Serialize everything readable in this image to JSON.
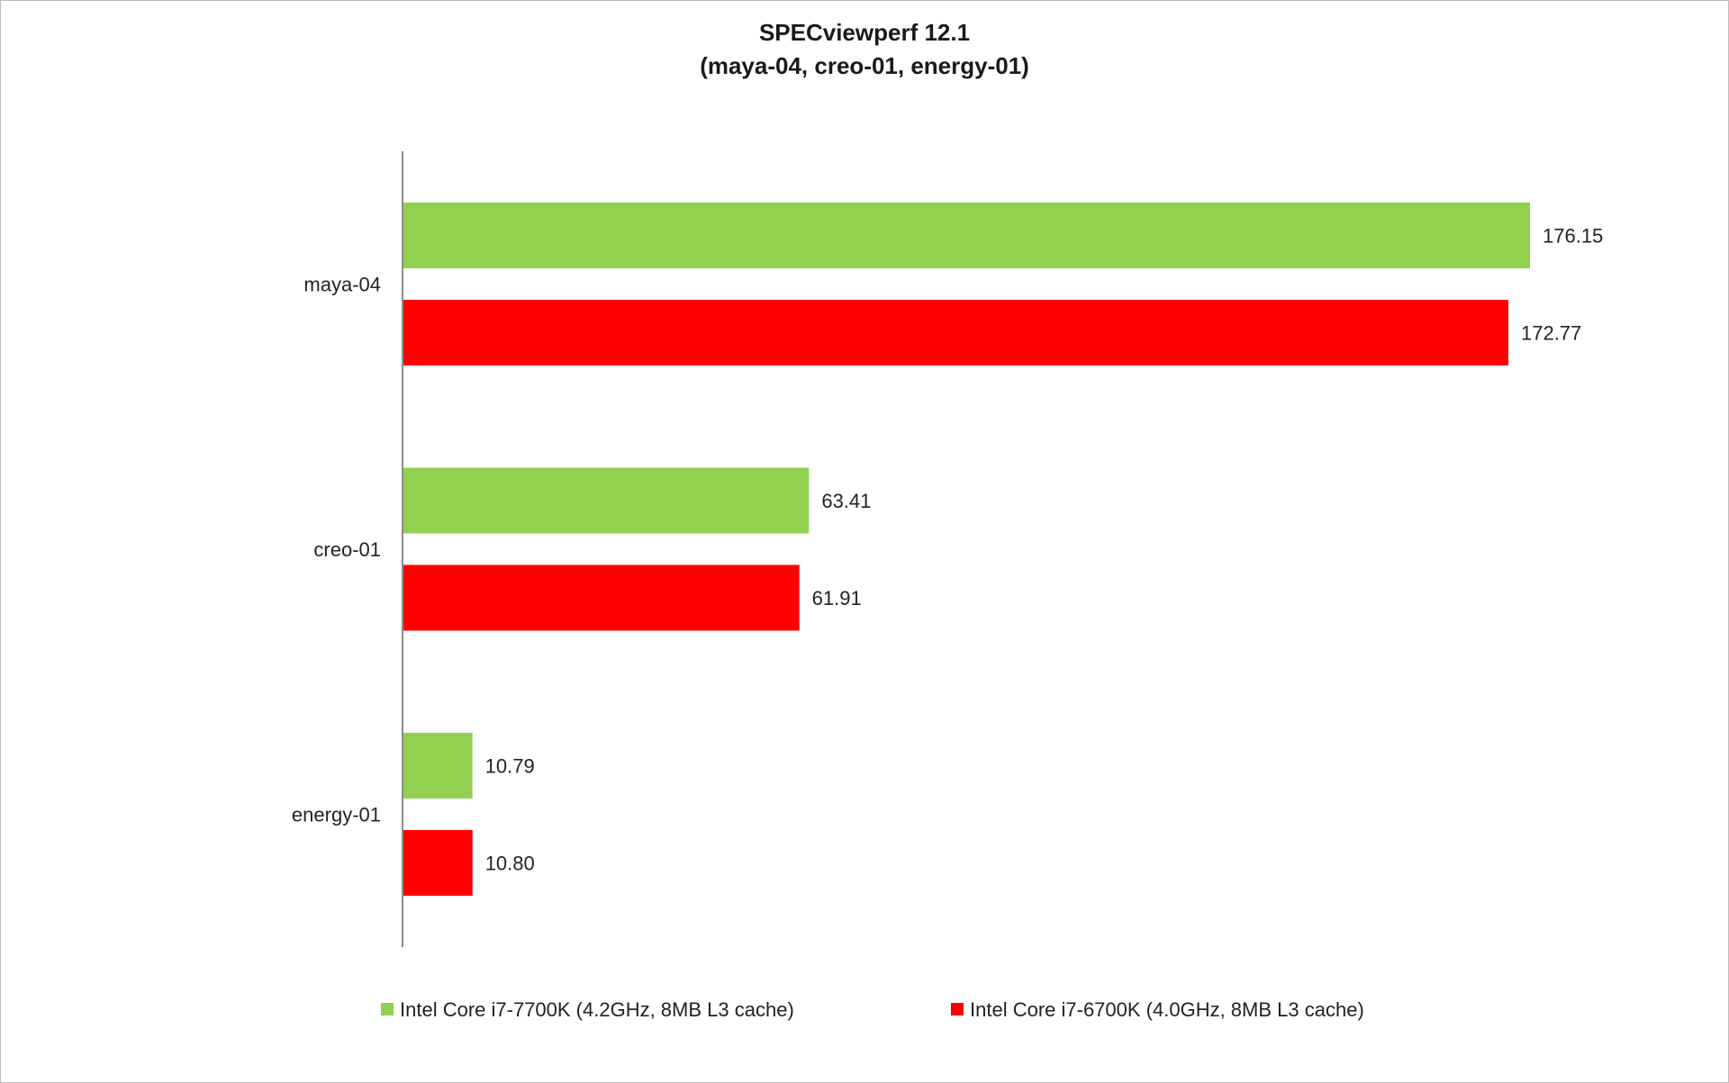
{
  "chart_data": {
    "type": "bar",
    "orientation": "horizontal",
    "title": "SPECviewperf 12.1",
    "subtitle": "(maya-04, creo-01, energy-01)",
    "xlabel": "",
    "ylabel": "",
    "categories": [
      "maya-04",
      "creo-01",
      "energy-01"
    ],
    "series": [
      {
        "name": "Intel Core i7-7700K (4.2GHz, 8MB L3 cache)",
        "color": "#92d050",
        "values": [
          176.15,
          63.41,
          10.79
        ],
        "labels": [
          "176.15",
          "63.41",
          "10.79"
        ]
      },
      {
        "name": "Intel Core i7-6700K (4.0GHz, 8MB L3 cache)",
        "color": "#ff0000",
        "values": [
          172.77,
          61.91,
          10.8
        ],
        "labels": [
          "172.77",
          "61.91",
          "10.80"
        ]
      }
    ],
    "xlim": [
      0,
      176.15
    ],
    "grid": false,
    "legend_position": "bottom"
  }
}
